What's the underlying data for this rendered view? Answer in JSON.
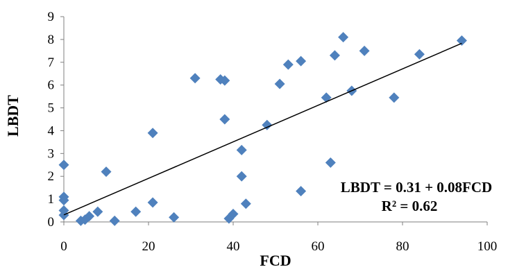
{
  "chart_data": {
    "type": "scatter",
    "xlabel": "FCD",
    "ylabel": "LBDT",
    "xlim": [
      0,
      100
    ],
    "ylim": [
      0,
      9
    ],
    "xticks": [
      0,
      20,
      40,
      60,
      80,
      100
    ],
    "yticks": [
      0,
      1,
      2,
      3,
      4,
      5,
      6,
      7,
      8,
      9
    ],
    "grid": false,
    "marker_color": "#4f81bd",
    "trendline": {
      "intercept": 0.31,
      "slope": 0.08,
      "x_range": [
        0,
        94
      ]
    },
    "annotations": [
      "LBDT = 0.31 + 0.08FCD",
      "R² = 0.62"
    ],
    "series": [
      {
        "points": [
          [
            0,
            2.5
          ],
          [
            0,
            1.1
          ],
          [
            0,
            0.95
          ],
          [
            0,
            0.5
          ],
          [
            0,
            0.3
          ],
          [
            4,
            0.05
          ],
          [
            5,
            0.1
          ],
          [
            6,
            0.25
          ],
          [
            8,
            0.45
          ],
          [
            10,
            2.2
          ],
          [
            12,
            0.05
          ],
          [
            17,
            0.45
          ],
          [
            21,
            3.9
          ],
          [
            21,
            0.85
          ],
          [
            26,
            0.2
          ],
          [
            31,
            6.3
          ],
          [
            37,
            6.25
          ],
          [
            38,
            6.2
          ],
          [
            38,
            4.5
          ],
          [
            39,
            0.15
          ],
          [
            40,
            0.35
          ],
          [
            42,
            3.15
          ],
          [
            42,
            2.0
          ],
          [
            43,
            0.8
          ],
          [
            48,
            4.25
          ],
          [
            51,
            6.05
          ],
          [
            53,
            6.9
          ],
          [
            56,
            7.05
          ],
          [
            56,
            1.35
          ],
          [
            62,
            5.45
          ],
          [
            63,
            2.6
          ],
          [
            64,
            7.3
          ],
          [
            66,
            8.1
          ],
          [
            68,
            5.75
          ],
          [
            71,
            7.5
          ],
          [
            78,
            5.45
          ],
          [
            84,
            7.35
          ],
          [
            94,
            7.95
          ]
        ]
      }
    ]
  }
}
